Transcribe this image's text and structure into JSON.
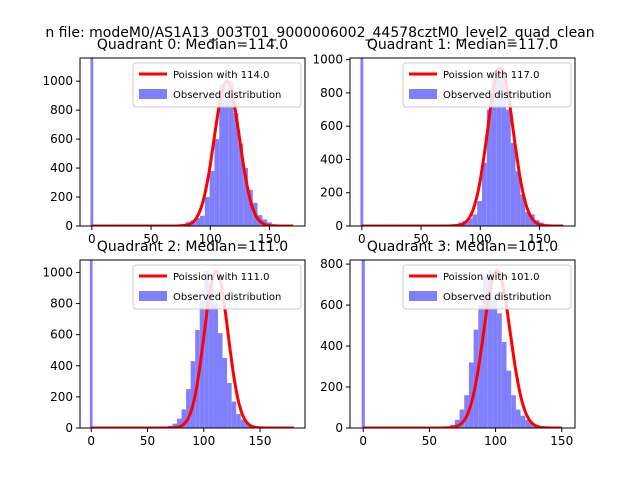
{
  "figure": {
    "suptitle": "n file: modeM0/AS1A13_003T01_9000006002_44578cztM0_level2_quad_clean"
  },
  "colors": {
    "hist": "#8080ff",
    "fit": "#ff0000",
    "axes": "#000000",
    "legend_border": "#cccccc"
  },
  "chart_data": [
    {
      "type": "bar",
      "title": "Quadrant 0: Median=114.0",
      "xlim": [
        -10,
        180
      ],
      "ylim": [
        0,
        1160
      ],
      "xticks": [
        0,
        50,
        100,
        150
      ],
      "yticks": [
        0,
        200,
        400,
        600,
        800,
        1000
      ],
      "median": 114.0,
      "legend": [
        "Poission with 114.0",
        "Observed distribution"
      ],
      "zero_bar": {
        "x": 0,
        "value": 1160
      },
      "bins_start": 63,
      "bin_width": 4.05,
      "bin_values": [
        2,
        4,
        8,
        15,
        26,
        38,
        55,
        70,
        200,
        380,
        600,
        980,
        880,
        1000,
        780,
        570,
        400,
        250,
        160,
        75,
        45,
        25,
        12,
        6,
        3
      ]
    },
    {
      "type": "bar",
      "title": "Quadrant 1: Median=117.0",
      "xlim": [
        -10,
        180
      ],
      "ylim": [
        0,
        1010
      ],
      "xticks": [
        0,
        50,
        100,
        150
      ],
      "yticks": [
        0,
        200,
        400,
        600,
        800,
        1000
      ],
      "median": 117.0,
      "legend": [
        "Poission with 117.0",
        "Observed distribution"
      ],
      "zero_bar": {
        "x": 0,
        "value": 1010
      },
      "bins_start": 65,
      "bin_width": 4.05,
      "bin_values": [
        2,
        4,
        6,
        12,
        20,
        30,
        45,
        70,
        150,
        380,
        700,
        930,
        950,
        920,
        700,
        500,
        330,
        190,
        85,
        70,
        35,
        20,
        10,
        4,
        2
      ]
    },
    {
      "type": "bar",
      "title": "Quadrant 2: Median=111.0",
      "xlim": [
        -10,
        190
      ],
      "ylim": [
        0,
        1080
      ],
      "xticks": [
        0,
        50,
        100,
        150
      ],
      "yticks": [
        0,
        200,
        400,
        600,
        800,
        1000
      ],
      "median": 111.0,
      "legend": [
        "Poission with 111.0",
        "Observed distribution"
      ],
      "zero_bar": {
        "x": 0,
        "value": 1080
      },
      "bins_start": 60,
      "bin_width": 4.05,
      "bin_values": [
        3,
        6,
        14,
        28,
        60,
        120,
        250,
        430,
        630,
        820,
        1010,
        920,
        800,
        610,
        450,
        290,
        170,
        90,
        55,
        28,
        14,
        7,
        3,
        2
      ]
    },
    {
      "type": "bar",
      "title": "Quadrant 3: Median=101.0",
      "xlim": [
        -10,
        160
      ],
      "ylim": [
        0,
        820
      ],
      "xticks": [
        0,
        50,
        100,
        150
      ],
      "yticks": [
        0,
        200,
        400,
        600,
        800
      ],
      "median": 101.0,
      "legend": [
        "Poission with 101.0",
        "Observed distribution"
      ],
      "zero_bar": {
        "x": 0,
        "value": 820
      },
      "bins_start": 55,
      "bin_width": 3.55,
      "bin_values": [
        2,
        4,
        8,
        16,
        40,
        90,
        160,
        320,
        480,
        600,
        740,
        770,
        640,
        560,
        420,
        280,
        160,
        90,
        60,
        40,
        22,
        12,
        6,
        3
      ]
    }
  ]
}
